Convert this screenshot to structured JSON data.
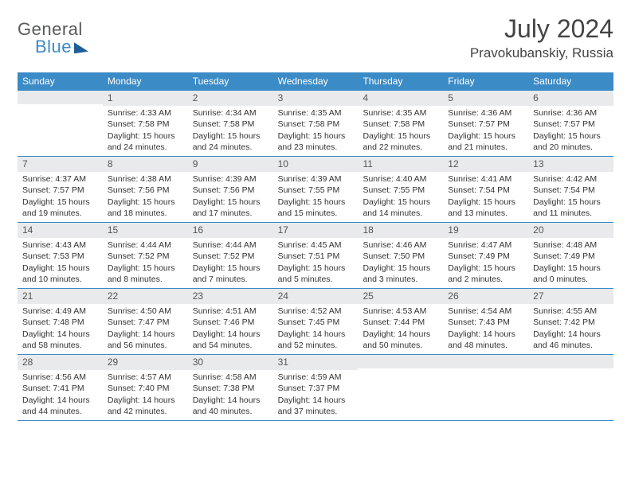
{
  "logo": {
    "top": "General",
    "bottom": "Blue"
  },
  "title": "July 2024",
  "location": "Pravokubanskiy, Russia",
  "colors": {
    "header_bg": "#3b8bc6",
    "header_text": "#ffffff",
    "daynum_bg": "#e9eaeb",
    "text": "#333333",
    "line": "#3b8bc6",
    "logo_gray": "#58595b",
    "logo_blue": "#3b8bc6"
  },
  "weekdays": [
    "Sunday",
    "Monday",
    "Tuesday",
    "Wednesday",
    "Thursday",
    "Friday",
    "Saturday"
  ],
  "weeks": [
    [
      null,
      {
        "n": "1",
        "sr": "Sunrise: 4:33 AM",
        "ss": "Sunset: 7:58 PM",
        "dl": "Daylight: 15 hours and 24 minutes."
      },
      {
        "n": "2",
        "sr": "Sunrise: 4:34 AM",
        "ss": "Sunset: 7:58 PM",
        "dl": "Daylight: 15 hours and 24 minutes."
      },
      {
        "n": "3",
        "sr": "Sunrise: 4:35 AM",
        "ss": "Sunset: 7:58 PM",
        "dl": "Daylight: 15 hours and 23 minutes."
      },
      {
        "n": "4",
        "sr": "Sunrise: 4:35 AM",
        "ss": "Sunset: 7:58 PM",
        "dl": "Daylight: 15 hours and 22 minutes."
      },
      {
        "n": "5",
        "sr": "Sunrise: 4:36 AM",
        "ss": "Sunset: 7:57 PM",
        "dl": "Daylight: 15 hours and 21 minutes."
      },
      {
        "n": "6",
        "sr": "Sunrise: 4:36 AM",
        "ss": "Sunset: 7:57 PM",
        "dl": "Daylight: 15 hours and 20 minutes."
      }
    ],
    [
      {
        "n": "7",
        "sr": "Sunrise: 4:37 AM",
        "ss": "Sunset: 7:57 PM",
        "dl": "Daylight: 15 hours and 19 minutes."
      },
      {
        "n": "8",
        "sr": "Sunrise: 4:38 AM",
        "ss": "Sunset: 7:56 PM",
        "dl": "Daylight: 15 hours and 18 minutes."
      },
      {
        "n": "9",
        "sr": "Sunrise: 4:39 AM",
        "ss": "Sunset: 7:56 PM",
        "dl": "Daylight: 15 hours and 17 minutes."
      },
      {
        "n": "10",
        "sr": "Sunrise: 4:39 AM",
        "ss": "Sunset: 7:55 PM",
        "dl": "Daylight: 15 hours and 15 minutes."
      },
      {
        "n": "11",
        "sr": "Sunrise: 4:40 AM",
        "ss": "Sunset: 7:55 PM",
        "dl": "Daylight: 15 hours and 14 minutes."
      },
      {
        "n": "12",
        "sr": "Sunrise: 4:41 AM",
        "ss": "Sunset: 7:54 PM",
        "dl": "Daylight: 15 hours and 13 minutes."
      },
      {
        "n": "13",
        "sr": "Sunrise: 4:42 AM",
        "ss": "Sunset: 7:54 PM",
        "dl": "Daylight: 15 hours and 11 minutes."
      }
    ],
    [
      {
        "n": "14",
        "sr": "Sunrise: 4:43 AM",
        "ss": "Sunset: 7:53 PM",
        "dl": "Daylight: 15 hours and 10 minutes."
      },
      {
        "n": "15",
        "sr": "Sunrise: 4:44 AM",
        "ss": "Sunset: 7:52 PM",
        "dl": "Daylight: 15 hours and 8 minutes."
      },
      {
        "n": "16",
        "sr": "Sunrise: 4:44 AM",
        "ss": "Sunset: 7:52 PM",
        "dl": "Daylight: 15 hours and 7 minutes."
      },
      {
        "n": "17",
        "sr": "Sunrise: 4:45 AM",
        "ss": "Sunset: 7:51 PM",
        "dl": "Daylight: 15 hours and 5 minutes."
      },
      {
        "n": "18",
        "sr": "Sunrise: 4:46 AM",
        "ss": "Sunset: 7:50 PM",
        "dl": "Daylight: 15 hours and 3 minutes."
      },
      {
        "n": "19",
        "sr": "Sunrise: 4:47 AM",
        "ss": "Sunset: 7:49 PM",
        "dl": "Daylight: 15 hours and 2 minutes."
      },
      {
        "n": "20",
        "sr": "Sunrise: 4:48 AM",
        "ss": "Sunset: 7:49 PM",
        "dl": "Daylight: 15 hours and 0 minutes."
      }
    ],
    [
      {
        "n": "21",
        "sr": "Sunrise: 4:49 AM",
        "ss": "Sunset: 7:48 PM",
        "dl": "Daylight: 14 hours and 58 minutes."
      },
      {
        "n": "22",
        "sr": "Sunrise: 4:50 AM",
        "ss": "Sunset: 7:47 PM",
        "dl": "Daylight: 14 hours and 56 minutes."
      },
      {
        "n": "23",
        "sr": "Sunrise: 4:51 AM",
        "ss": "Sunset: 7:46 PM",
        "dl": "Daylight: 14 hours and 54 minutes."
      },
      {
        "n": "24",
        "sr": "Sunrise: 4:52 AM",
        "ss": "Sunset: 7:45 PM",
        "dl": "Daylight: 14 hours and 52 minutes."
      },
      {
        "n": "25",
        "sr": "Sunrise: 4:53 AM",
        "ss": "Sunset: 7:44 PM",
        "dl": "Daylight: 14 hours and 50 minutes."
      },
      {
        "n": "26",
        "sr": "Sunrise: 4:54 AM",
        "ss": "Sunset: 7:43 PM",
        "dl": "Daylight: 14 hours and 48 minutes."
      },
      {
        "n": "27",
        "sr": "Sunrise: 4:55 AM",
        "ss": "Sunset: 7:42 PM",
        "dl": "Daylight: 14 hours and 46 minutes."
      }
    ],
    [
      {
        "n": "28",
        "sr": "Sunrise: 4:56 AM",
        "ss": "Sunset: 7:41 PM",
        "dl": "Daylight: 14 hours and 44 minutes."
      },
      {
        "n": "29",
        "sr": "Sunrise: 4:57 AM",
        "ss": "Sunset: 7:40 PM",
        "dl": "Daylight: 14 hours and 42 minutes."
      },
      {
        "n": "30",
        "sr": "Sunrise: 4:58 AM",
        "ss": "Sunset: 7:38 PM",
        "dl": "Daylight: 14 hours and 40 minutes."
      },
      {
        "n": "31",
        "sr": "Sunrise: 4:59 AM",
        "ss": "Sunset: 7:37 PM",
        "dl": "Daylight: 14 hours and 37 minutes."
      },
      null,
      null,
      null
    ]
  ]
}
